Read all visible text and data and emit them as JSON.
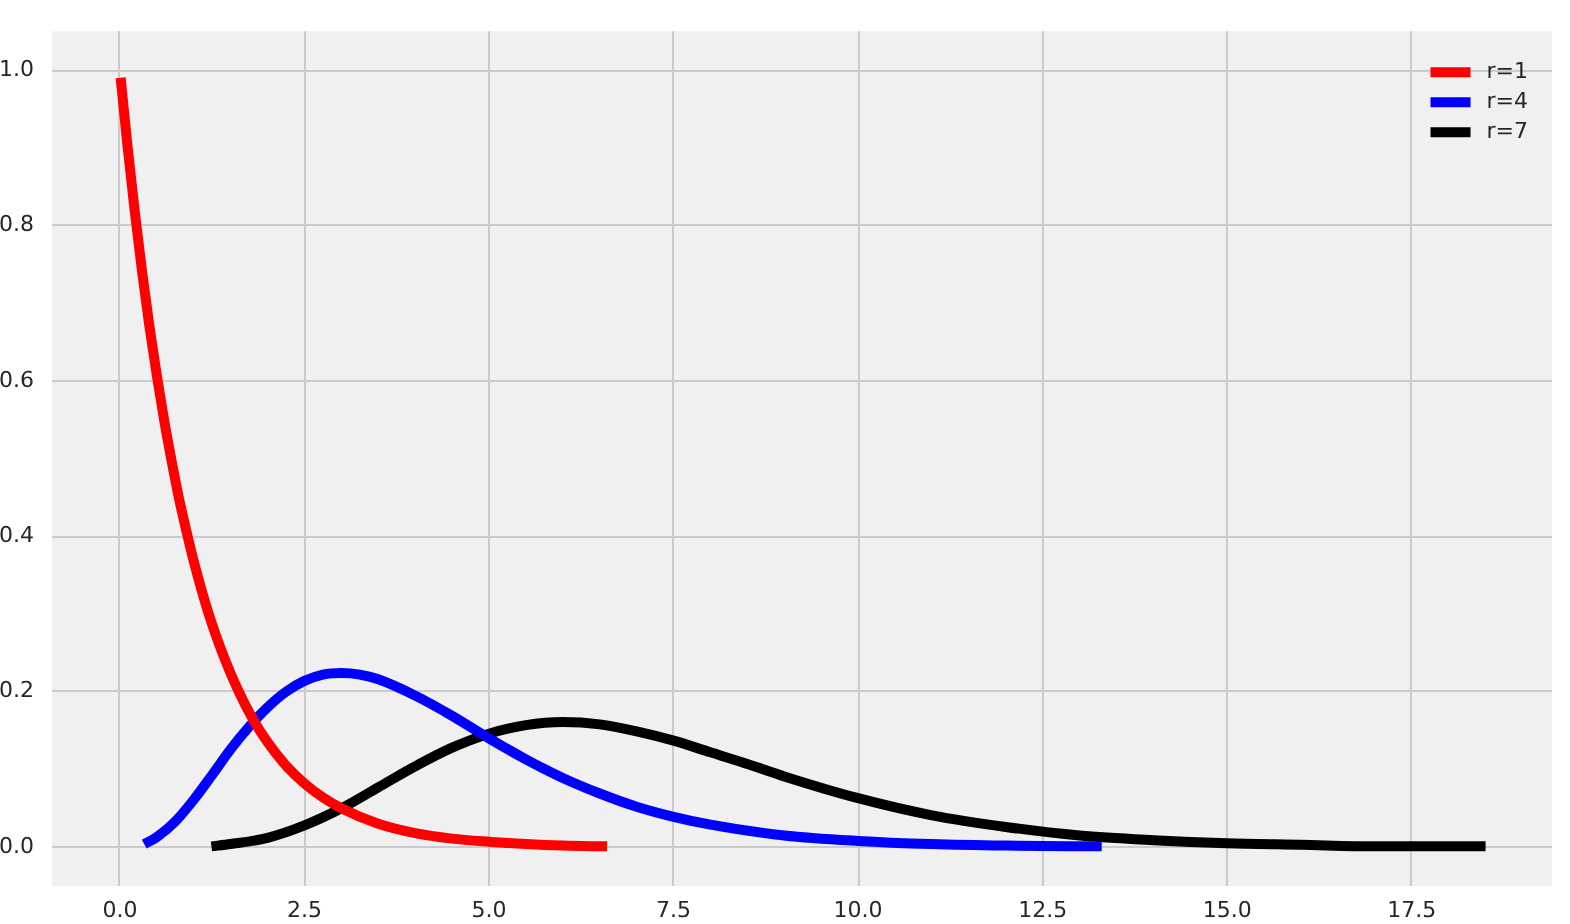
{
  "chart_data": {
    "type": "line",
    "xlim": [
      -0.92,
      19.4
    ],
    "ylim": [
      -0.05,
      1.05
    ],
    "xticks": [
      {
        "value": 0,
        "label": "0.0"
      },
      {
        "value": 2.5,
        "label": "2.5"
      },
      {
        "value": 5,
        "label": "5.0"
      },
      {
        "value": 7.5,
        "label": "7.5"
      },
      {
        "value": 10,
        "label": "10.0"
      },
      {
        "value": 12.5,
        "label": "12.5"
      },
      {
        "value": 15,
        "label": "15.0"
      },
      {
        "value": 17.5,
        "label": "17.5"
      }
    ],
    "yticks": [
      {
        "value": 0,
        "label": "0.0"
      },
      {
        "value": 0.2,
        "label": "0.2"
      },
      {
        "value": 0.4,
        "label": "0.4"
      },
      {
        "value": 0.6,
        "label": "0.6"
      },
      {
        "value": 0.8,
        "label": "0.8"
      },
      {
        "value": 1,
        "label": "1.0"
      }
    ],
    "grid": true,
    "legend": "top right",
    "marker": "none",
    "line_style": "solid",
    "series": [
      {
        "name": "r=1",
        "color": "#ff0000",
        "x": [
          0.01,
          0.1,
          0.2,
          0.3,
          0.4,
          0.5,
          0.6,
          0.7,
          0.8,
          0.9,
          1.0,
          1.2,
          1.4,
          1.6,
          1.8,
          2.0,
          2.25,
          2.5,
          2.75,
          3.0,
          3.5,
          4.0,
          4.5,
          5.0,
          5.5,
          6.0,
          6.6
        ],
        "values": [
          0.99,
          0.905,
          0.819,
          0.741,
          0.67,
          0.607,
          0.549,
          0.497,
          0.449,
          0.407,
          0.368,
          0.301,
          0.247,
          0.202,
          0.165,
          0.135,
          0.105,
          0.082,
          0.064,
          0.05,
          0.03,
          0.018,
          0.011,
          0.007,
          0.004,
          0.002,
          0.001
        ]
      },
      {
        "name": "r=4",
        "color": "#0000ff",
        "x": [
          0.33,
          0.5,
          0.75,
          1.0,
          1.25,
          1.5,
          1.75,
          2.0,
          2.25,
          2.5,
          2.75,
          3.0,
          3.25,
          3.5,
          4.0,
          4.5,
          5.0,
          5.5,
          6.0,
          6.5,
          7.0,
          7.5,
          8.0,
          9.0,
          10.0,
          11.0,
          12.0,
          13.3
        ],
        "values": [
          0.004,
          0.013,
          0.033,
          0.061,
          0.093,
          0.126,
          0.155,
          0.18,
          0.2,
          0.214,
          0.222,
          0.224,
          0.222,
          0.216,
          0.195,
          0.169,
          0.14,
          0.113,
          0.089,
          0.069,
          0.052,
          0.039,
          0.029,
          0.015,
          0.008,
          0.004,
          0.002,
          0.001
        ]
      },
      {
        "name": "r=7",
        "color": "#000000",
        "x": [
          1.24,
          1.5,
          2.0,
          2.5,
          3.0,
          3.5,
          4.0,
          4.5,
          5.0,
          5.5,
          6.0,
          6.5,
          7.0,
          7.5,
          8.0,
          8.5,
          9.0,
          10.0,
          11.0,
          12.0,
          13.0,
          14.0,
          15.0,
          16.0,
          17.0,
          18.5
        ],
        "values": [
          0.001,
          0.004,
          0.012,
          0.028,
          0.05,
          0.077,
          0.104,
          0.128,
          0.146,
          0.157,
          0.161,
          0.158,
          0.149,
          0.137,
          0.122,
          0.107,
          0.091,
          0.063,
          0.041,
          0.026,
          0.015,
          0.009,
          0.005,
          0.003,
          0.001,
          0.001
        ]
      }
    ]
  }
}
